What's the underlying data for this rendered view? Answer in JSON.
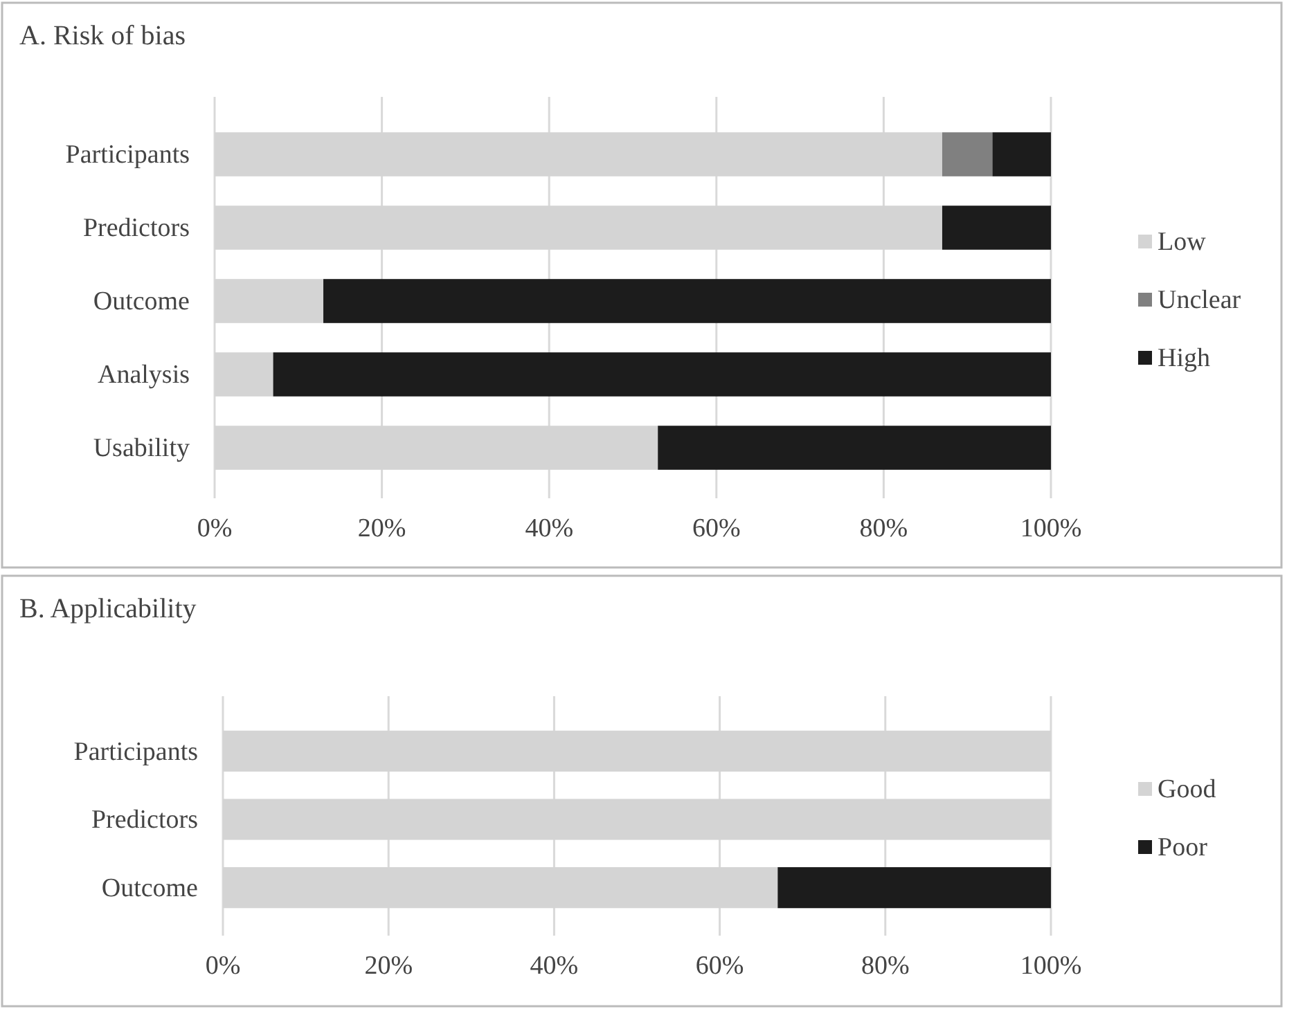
{
  "chart_data": [
    {
      "type": "bar",
      "title": "A. Risk of bias",
      "orientation": "horizontal",
      "stacked": true,
      "categories": [
        "Participants",
        "Predictors",
        "Outcome",
        "Analysis",
        "Usability"
      ],
      "series": [
        {
          "name": "Low",
          "color": "#d4d4d4",
          "values": [
            87,
            87,
            13,
            7,
            53
          ]
        },
        {
          "name": "Unclear",
          "color": "#808080",
          "values": [
            6,
            null,
            null,
            null,
            null
          ]
        },
        {
          "name": "High",
          "color": "#1c1c1c",
          "values": [
            7,
            13,
            87,
            93,
            47
          ]
        }
      ],
      "xlim": [
        0,
        100
      ],
      "xticks": [
        {
          "value": 0,
          "label": "0%"
        },
        {
          "value": 20,
          "label": "20%"
        },
        {
          "value": 40,
          "label": "40%"
        },
        {
          "value": 60,
          "label": "60%"
        },
        {
          "value": 80,
          "label": "80%"
        },
        {
          "value": 100,
          "label": "100%"
        }
      ],
      "grid": "x",
      "legend": "right"
    },
    {
      "type": "bar",
      "title": "B. Applicability",
      "orientation": "horizontal",
      "stacked": true,
      "categories": [
        "Participants",
        "Predictors",
        "Outcome"
      ],
      "series": [
        {
          "name": "Good",
          "color": "#d4d4d4",
          "values": [
            100,
            100,
            67
          ]
        },
        {
          "name": "Poor",
          "color": "#1c1c1c",
          "values": [
            null,
            null,
            33
          ]
        }
      ],
      "xlim": [
        0,
        100
      ],
      "xticks": [
        {
          "value": 0,
          "label": "0%"
        },
        {
          "value": 20,
          "label": "20%"
        },
        {
          "value": 40,
          "label": "40%"
        },
        {
          "value": 60,
          "label": "60%"
        },
        {
          "value": 80,
          "label": "80%"
        },
        {
          "value": 100,
          "label": "100%"
        }
      ],
      "grid": "x",
      "legend": "right"
    }
  ]
}
